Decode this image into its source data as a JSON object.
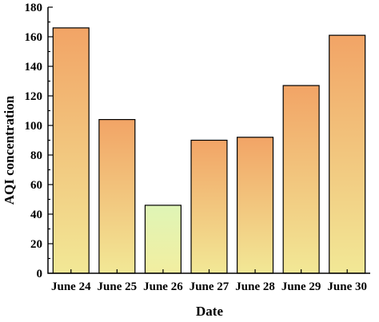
{
  "chart_data": {
    "type": "bar",
    "title": "",
    "xlabel": "Date",
    "ylabel": "AQI concentration",
    "categories": [
      "June 24",
      "June 25",
      "June 26",
      "June 27",
      "June 28",
      "June 29",
      "June 30"
    ],
    "values": [
      166,
      104,
      46,
      90,
      92,
      127,
      161
    ],
    "ylim": [
      0,
      180
    ],
    "yticks": [
      0,
      20,
      40,
      60,
      80,
      100,
      120,
      140,
      160,
      180
    ],
    "grid": false,
    "legend": "none",
    "colors": {
      "bar_gradient_top": "#f2a466",
      "bar_gradient_bottom": "#f2e896",
      "low_bar_top": "#dff5b6",
      "low_bar_bottom": "#f2eea0",
      "axis": "#000000"
    },
    "highlight_category": "June 26"
  }
}
